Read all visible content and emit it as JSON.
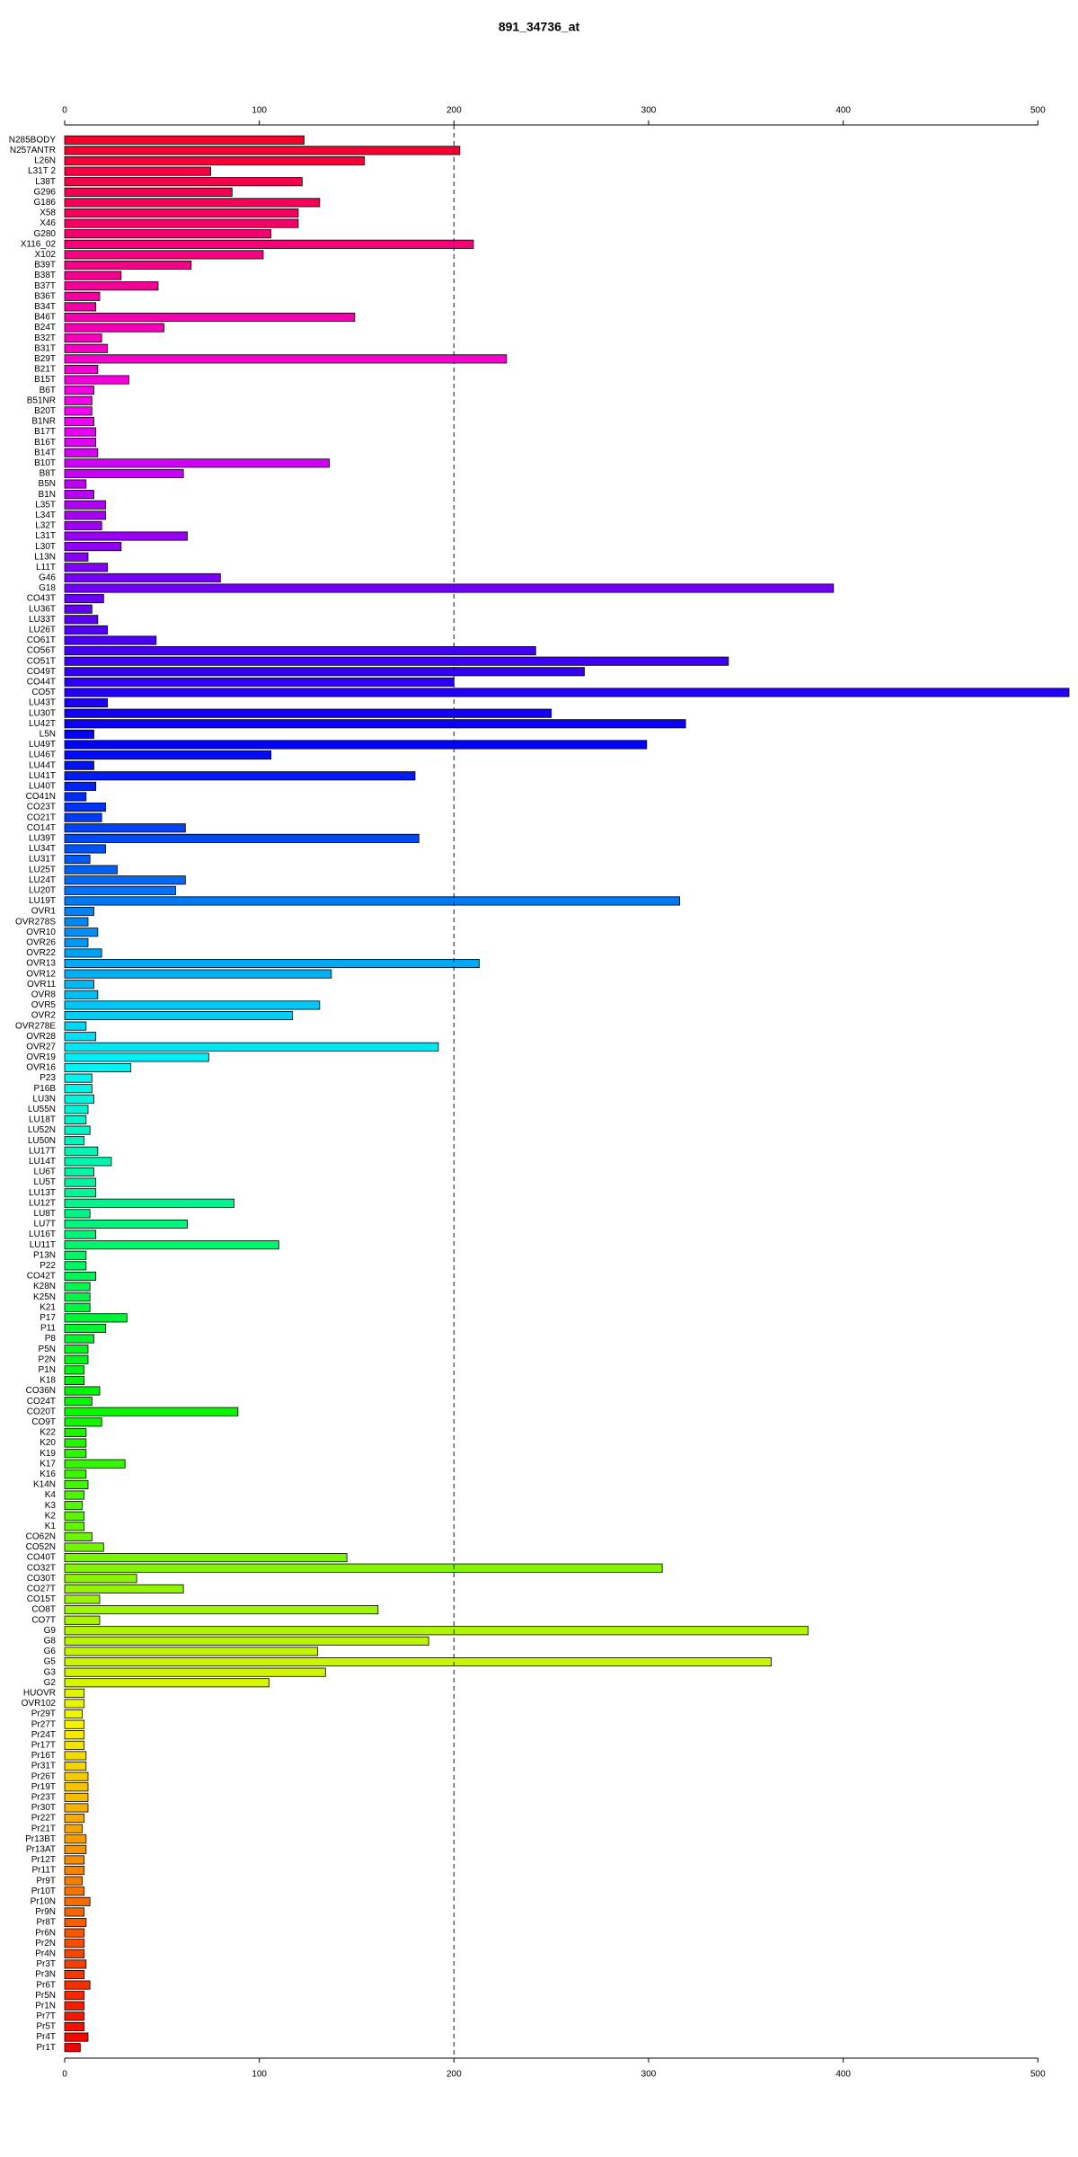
{
  "chart_data": {
    "type": "barh",
    "title": "891_34736_at",
    "categories": [
      "N285BODY",
      "N257ANTR",
      "L26N",
      "L31T 2",
      "L38T",
      "G296",
      "G186",
      "X58",
      "X46",
      "G280",
      "X116_02",
      "X102",
      "B39T",
      "B38T",
      "B37T",
      "B36T",
      "B34T",
      "B46T",
      "B24T",
      "B32T",
      "B31T",
      "B29T",
      "B21T",
      "B15T",
      "B6T",
      "B51NR",
      "B20T",
      "B1NR",
      "B17T",
      "B16T",
      "B14T",
      "B10T",
      "B8T",
      "B5N",
      "B1N",
      "L35T",
      "L34T",
      "L32T",
      "L31T",
      "L30T",
      "L13N",
      "L11T",
      "G46",
      "G18",
      "CO43T",
      "LU36T",
      "LU33T",
      "LU26T",
      "CO61T",
      "CO56T",
      "CO51T",
      "CO49T",
      "CO44T",
      "CO5T",
      "LU43T",
      "LU30T",
      "LU42T",
      "L5N",
      "LU49T",
      "LU46T",
      "LU44T",
      "LU41T",
      "LU40T",
      "CO41N",
      "CO23T",
      "CO21T",
      "CO14T",
      "LU39T",
      "LU34T",
      "LU31T",
      "LU25T",
      "LU24T",
      "LU20T",
      "LU19T",
      "OVR1",
      "OVR278S",
      "OVR10",
      "OVR26",
      "OVR22",
      "OVR13",
      "OVR12",
      "OVR11",
      "OVR8",
      "OVR5",
      "OVR2",
      "OVR278E",
      "OVR28",
      "OVR27",
      "OVR19",
      "OVR16",
      "P23",
      "P16B",
      "LU3N",
      "LU55N",
      "LU18T",
      "LU52N",
      "LU50N",
      "LU17T",
      "LU14T",
      "LU6T",
      "LU5T",
      "LU13T",
      "LU12T",
      "LU8T",
      "LU7T",
      "LU16T",
      "LU11T",
      "P13N",
      "P22",
      "CO42T",
      "K28N",
      "K25N",
      "K21",
      "P17",
      "P11",
      "P8",
      "P5N",
      "P2N",
      "P1N",
      "K18",
      "CO36N",
      "CO24T",
      "CO20T",
      "CO9T",
      "K22",
      "K20",
      "K19",
      "K17",
      "K16",
      "K14N",
      "K4",
      "K3",
      "K2",
      "K1",
      "CO62N",
      "CO52N",
      "CO40T",
      "CO32T",
      "CO30T",
      "CO27T",
      "CO15T",
      "CO8T",
      "CO7T",
      "G9",
      "G8",
      "G6",
      "G5",
      "G3",
      "G2",
      "HUOVR",
      "OVR102",
      "Pr29T",
      "Pr27T",
      "Pr24T",
      "Pr17T",
      "Pr16T",
      "Pr31T",
      "Pr26T",
      "Pr19T",
      "Pr23T",
      "Pr30T",
      "Pr22T",
      "Pr21T",
      "Pr13BT",
      "Pr13AT",
      "Pr12T",
      "Pr11T",
      "Pr9T",
      "Pr10T",
      "Pr10N",
      "Pr9N",
      "Pr8T",
      "Pr6N",
      "Pr2N",
      "Pr4N",
      "Pr3T",
      "Pr3N",
      "Pr6T",
      "Pr5N",
      "Pr1N",
      "Pr7T",
      "Pr5T",
      "Pr4T",
      "Pr1T"
    ],
    "values": [
      123,
      203,
      154,
      75,
      122,
      86,
      131,
      120,
      120,
      106,
      210,
      102,
      65,
      29,
      48,
      18,
      16,
      149,
      51,
      19,
      22,
      227,
      17,
      33,
      15,
      14,
      14,
      15,
      16,
      16,
      17,
      136,
      61,
      11,
      15,
      21,
      21,
      19,
      63,
      29,
      12,
      22,
      80,
      395,
      20,
      14,
      17,
      22,
      47,
      242,
      341,
      267,
      200,
      516,
      22,
      250,
      319,
      15,
      299,
      106,
      15,
      180,
      16,
      11,
      21,
      19,
      62,
      182,
      21,
      13,
      27,
      62,
      57,
      316,
      15,
      12,
      17,
      12,
      19,
      213,
      137,
      15,
      17,
      131,
      117,
      11,
      16,
      192,
      74,
      34,
      14,
      14,
      15,
      12,
      11,
      13,
      10,
      17,
      24,
      15,
      16,
      16,
      87,
      13,
      63,
      16,
      110,
      11,
      11,
      16,
      13,
      13,
      13,
      32,
      21,
      15,
      12,
      12,
      10,
      10,
      18,
      14,
      89,
      19,
      11,
      11,
      11,
      31,
      11,
      12,
      10,
      9,
      10,
      10,
      14,
      20,
      145,
      307,
      37,
      61,
      18,
      161,
      18,
      382,
      187,
      130,
      363,
      134,
      105,
      10,
      10,
      9,
      10,
      10,
      10,
      11,
      11,
      12,
      12,
      12,
      12,
      10,
      9,
      11,
      11,
      10,
      10,
      9,
      10,
      13,
      10,
      11,
      10,
      10,
      10,
      11,
      10,
      13,
      10,
      10,
      10,
      10,
      12,
      8
    ],
    "palette": "rainbow",
    "xlim": [
      0,
      516
    ],
    "xticks": [
      0,
      100,
      200,
      300,
      400,
      500
    ],
    "reference_line": 200,
    "reference_color": "#0000cc"
  }
}
